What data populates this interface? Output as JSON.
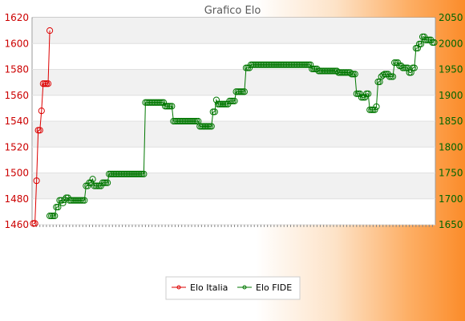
{
  "chart_data": {
    "type": "line",
    "title": "Grafico Elo",
    "xlabel": "",
    "ylabel": "",
    "y_left": {
      "ticks": [
        1460,
        1480,
        1500,
        1520,
        1540,
        1560,
        1580,
        1600,
        1620
      ],
      "range": [
        1460,
        1620
      ],
      "color": "#cc0000"
    },
    "y_right": {
      "ticks": [
        1650,
        1700,
        1750,
        1800,
        1850,
        1900,
        1950,
        2000,
        2050
      ],
      "range": [
        1650,
        2050
      ],
      "color": "#006600"
    },
    "grid": "horizontal bands",
    "legend_position": "bottom",
    "series": [
      {
        "name": "Elo Italia",
        "axis": "left",
        "color": "#dd0000",
        "start_index": 0,
        "values": [
          1461,
          1461,
          1494,
          1533,
          1533,
          1548,
          1569,
          1569,
          1569,
          1569,
          1610
        ]
      },
      {
        "name": "Elo FIDE",
        "axis": "right",
        "color": "#007700",
        "start_index": 10,
        "values": [
          1667,
          1667,
          1667,
          1667,
          1684,
          1684,
          1697,
          1697,
          1692,
          1698,
          1702,
          1702,
          1697,
          1697,
          1697,
          1697,
          1697,
          1697,
          1697,
          1697,
          1697,
          1697,
          1725,
          1725,
          1731,
          1731,
          1738,
          1725,
          1725,
          1725,
          1725,
          1725,
          1731,
          1731,
          1731,
          1731,
          1748,
          1748,
          1748,
          1748,
          1748,
          1748,
          1748,
          1748,
          1748,
          1748,
          1748,
          1748,
          1748,
          1748,
          1748,
          1748,
          1748,
          1748,
          1748,
          1748,
          1748,
          1748,
          1886,
          1886,
          1886,
          1886,
          1886,
          1886,
          1886,
          1886,
          1886,
          1886,
          1886,
          1886,
          1879,
          1879,
          1879,
          1879,
          1879,
          1850,
          1850,
          1850,
          1850,
          1850,
          1850,
          1850,
          1850,
          1850,
          1850,
          1850,
          1850,
          1850,
          1850,
          1850,
          1850,
          1840,
          1840,
          1840,
          1840,
          1840,
          1840,
          1840,
          1840,
          1868,
          1868,
          1891,
          1883,
          1883,
          1883,
          1883,
          1883,
          1883,
          1883,
          1889,
          1889,
          1889,
          1889,
          1907,
          1907,
          1907,
          1907,
          1907,
          1907,
          1953,
          1953,
          1953,
          1959,
          1959,
          1959,
          1959,
          1959,
          1959,
          1959,
          1959,
          1959,
          1959,
          1959,
          1959,
          1959,
          1959,
          1959,
          1959,
          1959,
          1959,
          1959,
          1959,
          1959,
          1959,
          1959,
          1959,
          1959,
          1959,
          1959,
          1959,
          1959,
          1959,
          1959,
          1959,
          1959,
          1959,
          1959,
          1959,
          1959,
          1951,
          1951,
          1951,
          1951,
          1947,
          1947,
          1947,
          1947,
          1947,
          1947,
          1947,
          1947,
          1947,
          1947,
          1947,
          1947,
          1944,
          1944,
          1944,
          1944,
          1944,
          1944,
          1944,
          1944,
          1941,
          1941,
          1941,
          1903,
          1903,
          1903,
          1896,
          1896,
          1896,
          1903,
          1903,
          1872,
          1872,
          1872,
          1872,
          1878,
          1926,
          1926,
          1936,
          1939,
          1941,
          1941,
          1941,
          1936,
          1936,
          1936,
          1963,
          1963,
          1963,
          1957,
          1957,
          1953,
          1953,
          1953,
          1953,
          1944,
          1944,
          1953,
          1953,
          1991,
          1991,
          1999,
          1999,
          2013,
          2013,
          2007,
          2007,
          2007,
          2007,
          2002,
          2002
        ]
      }
    ]
  }
}
